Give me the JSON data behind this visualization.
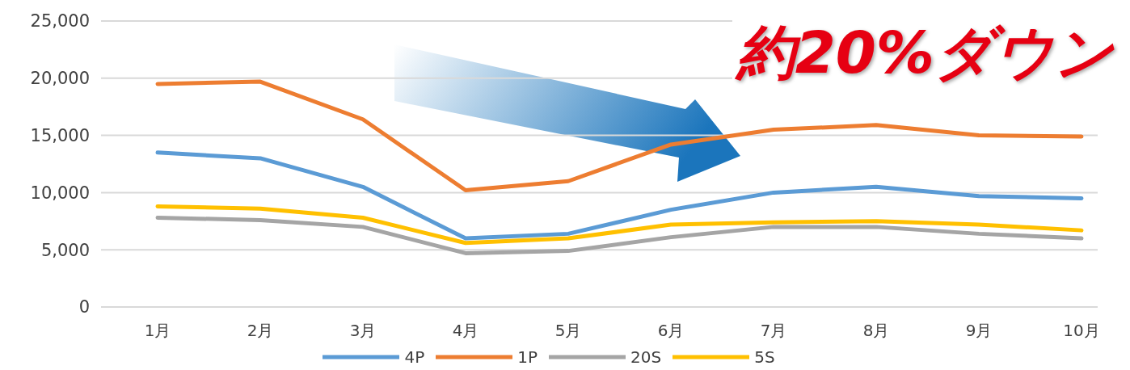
{
  "chart_data": {
    "type": "line",
    "categories": [
      "1月",
      "2月",
      "3月",
      "4月",
      "5月",
      "6月",
      "7月",
      "8月",
      "9月",
      "10月"
    ],
    "series": [
      {
        "name": "4P",
        "color": "#5b9bd5",
        "values": [
          13500,
          13000,
          10500,
          6000,
          6400,
          8500,
          10000,
          10500,
          9700,
          9500
        ]
      },
      {
        "name": "1P",
        "color": "#ed7d31",
        "values": [
          19500,
          19700,
          16400,
          10200,
          11000,
          14200,
          15500,
          15900,
          15000,
          14900
        ]
      },
      {
        "name": "20S",
        "color": "#a5a5a5",
        "values": [
          7800,
          7600,
          7000,
          4700,
          4900,
          6100,
          7000,
          7000,
          6400,
          6000
        ]
      },
      {
        "name": "5S",
        "color": "#ffc000",
        "values": [
          8800,
          8600,
          7800,
          5600,
          6000,
          7200,
          7400,
          7500,
          7200,
          6700
        ]
      }
    ],
    "ylim": [
      0,
      25000
    ],
    "yticks": [
      {
        "value": 0,
        "label": "0"
      },
      {
        "value": 5000,
        "label": "5,000"
      },
      {
        "value": 10000,
        "label": "10,000"
      },
      {
        "value": 15000,
        "label": "15,000"
      },
      {
        "value": 20000,
        "label": "20,000"
      },
      {
        "value": 25000,
        "label": "25,000"
      }
    ],
    "grid": "y",
    "legend": "bottom",
    "marker": "none",
    "line_style": "solid",
    "annotations": [
      "約20%ダウン"
    ]
  }
}
